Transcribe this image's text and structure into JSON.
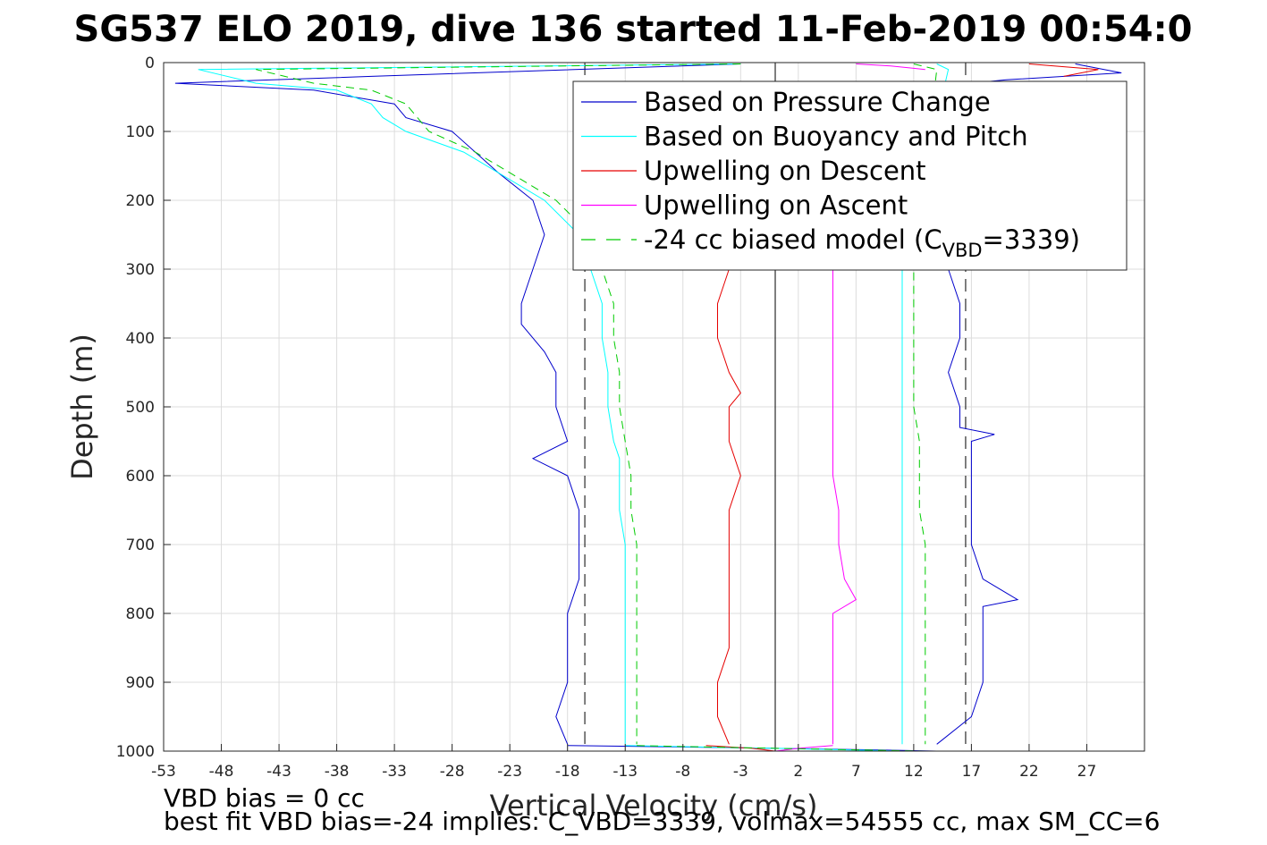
{
  "chart_data": {
    "type": "line",
    "title": "SG537 ELO 2019, dive 136 started 11-Feb-2019 00:54:0",
    "xlabel": "Vertical Velocity (cm/s)",
    "ylabel": "Depth (m)",
    "xlim": [
      -53,
      32
    ],
    "ylim": [
      0,
      1000
    ],
    "y_reversed": true,
    "grid": true,
    "legend_position": "top-right",
    "x_ticks": [
      -53,
      -48,
      -43,
      -38,
      -33,
      -28,
      -23,
      -18,
      -13,
      -8,
      -3,
      2,
      7,
      12,
      17,
      22,
      27
    ],
    "y_ticks": [
      0,
      100,
      200,
      300,
      400,
      500,
      600,
      700,
      800,
      900,
      1000
    ],
    "reference_lines": [
      {
        "style": "solid",
        "color": "#000000",
        "x": 0
      },
      {
        "style": "dashed",
        "color": "#000000",
        "x": -16.5
      },
      {
        "style": "dashed",
        "color": "#000000",
        "x": 16.5
      }
    ],
    "series": [
      {
        "name": "Based on Pressure Change",
        "color": "#0000cc",
        "style": "solid",
        "segments": [
          {
            "depth": [
              2,
              20,
              30,
              40,
              60,
              80,
              100,
              130,
              160,
              200,
              250,
              300,
              350,
              380,
              420,
              450,
              500,
              550,
              575,
              600,
              650,
              700,
              750,
              800,
              850,
              900,
              950,
              990
            ],
            "x": [
              -3,
              -35,
              -52,
              -40,
              -33,
              -32,
              -28,
              -26,
              -24,
              -21,
              -20,
              -21,
              -22,
              -22,
              -20,
              -19,
              -19,
              -18,
              -21,
              -18,
              -17,
              -17,
              -17,
              -18,
              -18,
              -18,
              -19,
              -18
            ]
          },
          {
            "depth": [
              2,
              15,
              25,
              30,
              300,
              350,
              400,
              450,
              500,
              530,
              540,
              550,
              600,
              650,
              700,
              750,
              770,
              780,
              790,
              800,
              850,
              900,
              950,
              990
            ],
            "x": [
              26,
              30,
              20,
              17,
              15,
              16,
              16,
              15,
              16,
              16,
              19,
              17,
              17,
              17,
              17,
              18,
              20,
              21,
              18,
              18,
              18,
              18,
              17,
              14
            ]
          },
          {
            "depth": [
              992,
              994,
              996,
              998,
              1000
            ],
            "x": [
              -18,
              -8,
              0,
              8,
              14
            ]
          }
        ]
      },
      {
        "name": "Based on Buoyancy and Pitch",
        "color": "#00ffff",
        "style": "solid",
        "segments": [
          {
            "depth": [
              2,
              10,
              30,
              40,
              60,
              80,
              100,
              130,
              160,
              200,
              250,
              300,
              350,
              400,
              450,
              500,
              550,
              575,
              600,
              650,
              700,
              750,
              800,
              850,
              900,
              950,
              990
            ],
            "x": [
              -3,
              -50,
              -45,
              -38,
              -35,
              -34,
              -32,
              -27,
              -24,
              -20,
              -17,
              -16,
              -15,
              -15,
              -14.5,
              -14.5,
              -14,
              -13.5,
              -13.5,
              -13.5,
              -13,
              -13,
              -13,
              -13,
              -13,
              -13,
              -13
            ]
          },
          {
            "depth": [
              2,
              10,
              300,
              350,
              400,
              450,
              500,
              550,
              600,
              650,
              700,
              750,
              800,
              850,
              900,
              950,
              990
            ],
            "x": [
              14,
              15,
              11,
              11,
              11,
              11,
              11,
              11,
              11,
              11,
              11,
              11,
              11,
              11,
              11,
              11,
              11
            ]
          },
          {
            "depth": [
              992,
              996,
              1000
            ],
            "x": [
              -13,
              0,
              11
            ]
          }
        ]
      },
      {
        "name": "Upwelling on Descent",
        "color": "#e60000",
        "style": "solid",
        "segments": [
          {
            "depth": [
              300,
              350,
              400,
              450,
              480,
              500,
              550,
              600,
              650,
              700,
              750,
              800,
              850,
              900,
              950,
              990
            ],
            "x": [
              -4,
              -5,
              -5,
              -4,
              -3,
              -4,
              -4,
              -3,
              -4,
              -4,
              -4,
              -4,
              -4,
              -5,
              -5,
              -4
            ]
          },
          {
            "depth": [
              2,
              10,
              20
            ],
            "x": [
              22,
              28,
              25
            ]
          },
          {
            "depth": [
              992,
              996,
              1000
            ],
            "x": [
              -6,
              -2,
              0
            ]
          }
        ]
      },
      {
        "name": "Upwelling on Ascent",
        "color": "#ff00ff",
        "style": "solid",
        "segments": [
          {
            "depth": [
              300,
              350,
              400,
              450,
              500,
              550,
              600,
              650,
              700,
              750,
              780,
              800,
              850,
              900,
              950,
              990
            ],
            "x": [
              5,
              5,
              5,
              5,
              5,
              5,
              5,
              5.5,
              5.5,
              6,
              7,
              5,
              5,
              5,
              5,
              5
            ]
          },
          {
            "depth": [
              2,
              5,
              10
            ],
            "x": [
              7,
              10,
              13
            ]
          },
          {
            "depth": [
              992,
              996,
              1000
            ],
            "x": [
              5,
              2,
              0
            ]
          }
        ]
      },
      {
        "name": "-24 cc biased model (C",
        "name_sub": "VBD",
        "name_suffix": "=3339)",
        "color": "#00cc00",
        "style": "dashed",
        "segments": [
          {
            "depth": [
              2,
              10,
              30,
              40,
              60,
              80,
              100,
              130,
              160,
              200,
              250,
              300,
              350,
              400,
              450,
              500,
              550,
              600,
              650,
              700,
              750,
              800,
              850,
              900,
              950,
              990
            ],
            "x": [
              -3,
              -45,
              -40,
              -35,
              -32,
              -31,
              -30,
              -26,
              -23,
              -19,
              -16,
              -15,
              -14,
              -14,
              -13.5,
              -13.5,
              -13,
              -12.5,
              -12.5,
              -12,
              -12,
              -12,
              -12,
              -12,
              -12,
              -12
            ]
          },
          {
            "depth": [
              2,
              10,
              300,
              350,
              400,
              450,
              500,
              550,
              600,
              650,
              700,
              750,
              800,
              850,
              900,
              950,
              990
            ],
            "x": [
              12,
              14,
              12,
              12,
              12,
              12,
              12,
              12.5,
              12.5,
              12.5,
              13,
              13,
              13,
              13,
              13,
              13,
              13
            ]
          },
          {
            "depth": [
              992,
              996,
              1000
            ],
            "x": [
              -12,
              0,
              13
            ]
          }
        ]
      }
    ]
  },
  "notes": {
    "vbd_bias": "VBD bias = 0 cc",
    "best_fit": "best fit VBD bias=-24 implies: C_VBD=3339, volmax=54555 cc, max SM_CC=6"
  }
}
